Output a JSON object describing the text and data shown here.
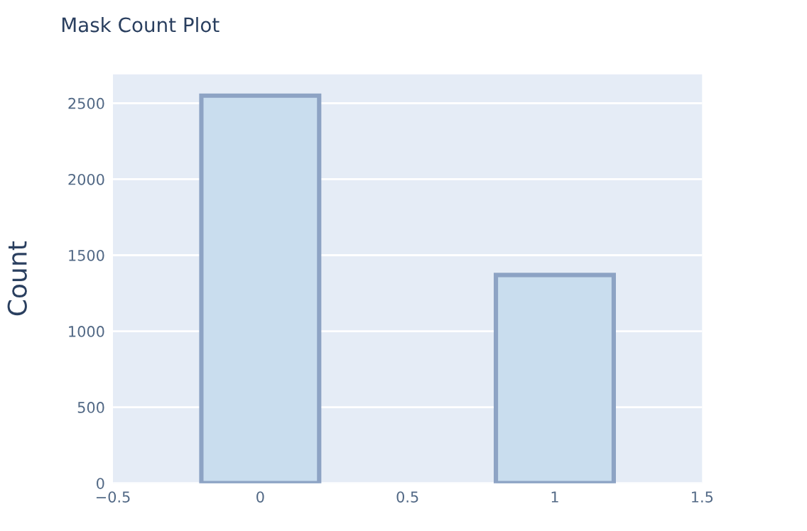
{
  "chart_data": {
    "type": "bar",
    "title": "Mask Count Plot",
    "ylabel": "Count",
    "x": [
      0,
      1
    ],
    "values": [
      2550,
      1370
    ],
    "color": "#c9ddee",
    "xlim": [
      -0.5,
      1.5
    ],
    "xticks": [
      {
        "value": -0.5,
        "label": "−0.5"
      },
      0,
      0.5,
      1,
      1.5
    ],
    "ylim": [
      0,
      2690
    ],
    "yticks": [
      0,
      500,
      1000,
      1500,
      2000,
      2500
    ],
    "grid": "y"
  }
}
